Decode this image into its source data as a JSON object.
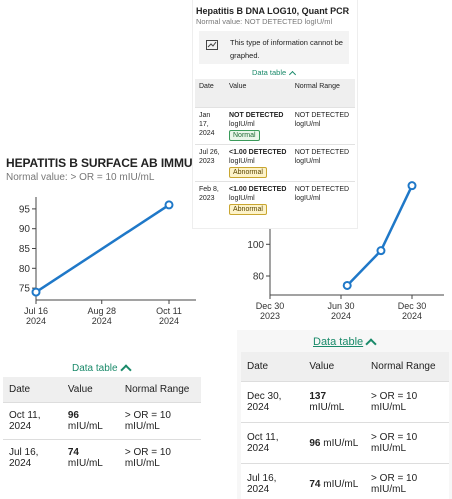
{
  "card_dna": {
    "title": "Hepatitis B DNA LOG10, Quant PCR",
    "normal_value": "Normal value: NOT DETECTED logIU/ml",
    "notice": "This type of information cannot be graphed.",
    "data_table_label": "Data table",
    "headers": [
      "Date",
      "Value",
      "Normal Range"
    ],
    "rows": [
      {
        "date": "Jan 17, 2024",
        "value_bold": "NOT DETECTED",
        "value_unit": "logIU/ml",
        "badge": "Normal",
        "range": "NOT DETECTED logIU/ml"
      },
      {
        "date": "Jul 26, 2023",
        "value_bold": "<1.00 DETECTED",
        "value_unit": "logIU/ml",
        "badge": "Abnormal",
        "range": "NOT DETECTED logIU/ml"
      },
      {
        "date": "Feb 8, 2023",
        "value_bold": "<1.00 DETECTED",
        "value_unit": "logIU/ml",
        "badge": "Abnormal",
        "range": "NOT DETECTED logIU/ml"
      }
    ]
  },
  "card_surface": {
    "title": "HEPATITIS B SURFACE AB IMMUNITY, QN",
    "normal_value": "Normal value: > OR = 10 mIU/mL",
    "data_table_label": "Data table",
    "headers": [
      "Date",
      "Value",
      "Normal Range"
    ],
    "rows": [
      {
        "date": "Oct 11, 2024",
        "value": "96",
        "unit": "mIU/mL",
        "range": "> OR = 10 mIU/mL"
      },
      {
        "date": "Jul 16, 2024",
        "value": "74",
        "unit": "mIU/mL",
        "range": "> OR = 10 mIU/mL"
      }
    ]
  },
  "card_history": {
    "data_table_label": "Data table",
    "headers": [
      "Date",
      "Value",
      "Normal Range"
    ],
    "rows": [
      {
        "date": "Dec 30, 2024",
        "value": "137",
        "unit": "mIU/mL",
        "range": "> OR = 10 mIU/mL"
      },
      {
        "date": "Oct 11, 2024",
        "value": "96",
        "unit": "mIU/mL",
        "range": "> OR = 10 mIU/mL"
      },
      {
        "date": "Jul 16, 2024",
        "value": "74",
        "unit": "mIU/mL",
        "range": "> OR = 10 mIU/mL"
      }
    ]
  },
  "colors": {
    "line": "#1f78c8",
    "accent": "#1a8a6a"
  },
  "chart_data": [
    {
      "type": "line",
      "x_dates": [
        "2024-07-16",
        "2024-10-11"
      ],
      "values": [
        74,
        96
      ],
      "xtick_labels": [
        [
          "Jul 16",
          "2024"
        ],
        [
          "Aug 28",
          "2024"
        ],
        [
          "Oct 11",
          "2024"
        ]
      ],
      "xtick_dates": [
        "2024-07-16",
        "2024-08-28",
        "2024-10-11"
      ],
      "yticks": [
        75,
        80,
        85,
        90,
        95
      ],
      "ylim": [
        72,
        98
      ],
      "grid": false
    },
    {
      "type": "line",
      "x_dates": [
        "2024-07-16",
        "2024-10-11",
        "2024-12-30"
      ],
      "values": [
        74,
        96,
        137
      ],
      "xtick_labels": [
        [
          "Dec 30",
          "2023"
        ],
        [
          "Jun 30",
          "2024"
        ],
        [
          "Dec 30",
          "2024"
        ]
      ],
      "xtick_dates": [
        "2023-12-30",
        "2024-06-30",
        "2024-12-30"
      ],
      "yticks": [
        80,
        100
      ],
      "ylim": [
        68,
        145
      ],
      "grid": false
    }
  ]
}
